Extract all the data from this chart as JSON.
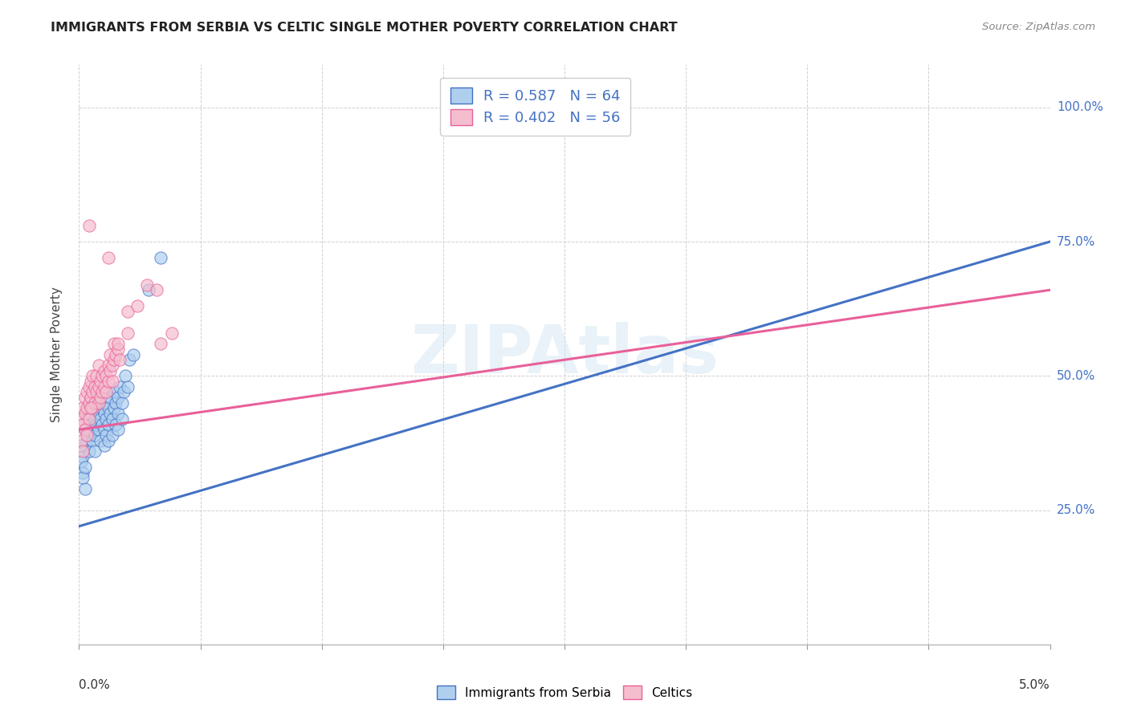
{
  "title": "IMMIGRANTS FROM SERBIA VS CELTIC SINGLE MOTHER POVERTY CORRELATION CHART",
  "source": "Source: ZipAtlas.com",
  "ylabel": "Single Mother Poverty",
  "ytick_labels": [
    "25.0%",
    "50.0%",
    "75.0%",
    "100.0%"
  ],
  "legend_entries": [
    {
      "label": "Immigrants from Serbia",
      "R": "0.587",
      "N": "64",
      "color": "#aecfee"
    },
    {
      "label": "Celtics",
      "R": "0.402",
      "N": "56",
      "color": "#f5bece"
    }
  ],
  "watermark": "ZIPAtlas",
  "background_color": "#ffffff",
  "serbia_color": "#aecfee",
  "celtics_color": "#f5bece",
  "serbia_line_color": "#4472c4",
  "celtics_line_color": "#e8609a",
  "serbia_scatter": [
    [
      0.0002,
      0.35
    ],
    [
      0.0003,
      0.37
    ],
    [
      0.0003,
      0.4
    ],
    [
      0.0004,
      0.38
    ],
    [
      0.0004,
      0.42
    ],
    [
      0.0005,
      0.36
    ],
    [
      0.0005,
      0.39
    ],
    [
      0.0005,
      0.44
    ],
    [
      0.0006,
      0.41
    ],
    [
      0.0006,
      0.43
    ],
    [
      0.0006,
      0.46
    ],
    [
      0.0007,
      0.4
    ],
    [
      0.0007,
      0.44
    ],
    [
      0.0007,
      0.38
    ],
    [
      0.0008,
      0.42
    ],
    [
      0.0008,
      0.39
    ],
    [
      0.0008,
      0.36
    ],
    [
      0.0009,
      0.41
    ],
    [
      0.0009,
      0.44
    ],
    [
      0.001,
      0.43
    ],
    [
      0.001,
      0.46
    ],
    [
      0.001,
      0.4
    ],
    [
      0.0011,
      0.42
    ],
    [
      0.0011,
      0.45
    ],
    [
      0.0011,
      0.38
    ],
    [
      0.0012,
      0.44
    ],
    [
      0.0012,
      0.41
    ],
    [
      0.0012,
      0.47
    ],
    [
      0.0013,
      0.43
    ],
    [
      0.0013,
      0.4
    ],
    [
      0.0013,
      0.37
    ],
    [
      0.0014,
      0.42
    ],
    [
      0.0014,
      0.45
    ],
    [
      0.0014,
      0.39
    ],
    [
      0.0015,
      0.44
    ],
    [
      0.0015,
      0.41
    ],
    [
      0.0015,
      0.38
    ],
    [
      0.0016,
      0.43
    ],
    [
      0.0016,
      0.46
    ],
    [
      0.0017,
      0.42
    ],
    [
      0.0017,
      0.39
    ],
    [
      0.0018,
      0.44
    ],
    [
      0.0018,
      0.47
    ],
    [
      0.0019,
      0.45
    ],
    [
      0.0019,
      0.41
    ],
    [
      0.002,
      0.46
    ],
    [
      0.002,
      0.43
    ],
    [
      0.002,
      0.4
    ],
    [
      0.0021,
      0.48
    ],
    [
      0.0022,
      0.45
    ],
    [
      0.0022,
      0.42
    ],
    [
      0.0023,
      0.47
    ],
    [
      0.0024,
      0.5
    ],
    [
      0.0025,
      0.48
    ],
    [
      0.0001,
      0.37
    ],
    [
      0.0001,
      0.34
    ],
    [
      0.0002,
      0.32
    ],
    [
      0.0003,
      0.29
    ],
    [
      0.0002,
      0.31
    ],
    [
      0.0003,
      0.33
    ],
    [
      0.0026,
      0.53
    ],
    [
      0.0028,
      0.54
    ],
    [
      0.0036,
      0.66
    ],
    [
      0.0042,
      0.72
    ]
  ],
  "celtics_scatter": [
    [
      0.0001,
      0.42
    ],
    [
      0.0002,
      0.44
    ],
    [
      0.0002,
      0.41
    ],
    [
      0.0003,
      0.43
    ],
    [
      0.0003,
      0.46
    ],
    [
      0.0004,
      0.44
    ],
    [
      0.0004,
      0.47
    ],
    [
      0.0005,
      0.45
    ],
    [
      0.0005,
      0.48
    ],
    [
      0.0006,
      0.46
    ],
    [
      0.0006,
      0.49
    ],
    [
      0.0007,
      0.47
    ],
    [
      0.0007,
      0.44
    ],
    [
      0.0007,
      0.5
    ],
    [
      0.0008,
      0.48
    ],
    [
      0.0008,
      0.45
    ],
    [
      0.0009,
      0.47
    ],
    [
      0.0009,
      0.5
    ],
    [
      0.001,
      0.48
    ],
    [
      0.001,
      0.45
    ],
    [
      0.001,
      0.52
    ],
    [
      0.0011,
      0.49
    ],
    [
      0.0011,
      0.46
    ],
    [
      0.0012,
      0.5
    ],
    [
      0.0012,
      0.47
    ],
    [
      0.0013,
      0.51
    ],
    [
      0.0013,
      0.48
    ],
    [
      0.0014,
      0.5
    ],
    [
      0.0014,
      0.47
    ],
    [
      0.0015,
      0.52
    ],
    [
      0.0015,
      0.49
    ],
    [
      0.0016,
      0.51
    ],
    [
      0.0016,
      0.54
    ],
    [
      0.0017,
      0.52
    ],
    [
      0.0017,
      0.49
    ],
    [
      0.0018,
      0.53
    ],
    [
      0.0018,
      0.56
    ],
    [
      0.0019,
      0.54
    ],
    [
      0.002,
      0.55
    ],
    [
      0.0021,
      0.53
    ],
    [
      0.0001,
      0.38
    ],
    [
      0.0002,
      0.36
    ],
    [
      0.0003,
      0.4
    ],
    [
      0.0004,
      0.39
    ],
    [
      0.0005,
      0.42
    ],
    [
      0.0006,
      0.44
    ],
    [
      0.0025,
      0.62
    ],
    [
      0.0025,
      0.58
    ],
    [
      0.003,
      0.63
    ],
    [
      0.0035,
      0.67
    ],
    [
      0.004,
      0.66
    ],
    [
      0.0042,
      0.56
    ],
    [
      0.0015,
      0.72
    ],
    [
      0.002,
      0.56
    ],
    [
      0.0005,
      0.78
    ],
    [
      0.0048,
      0.58
    ]
  ],
  "serbia_line": {
    "x0": 0.0,
    "y0": 0.22,
    "x1": 0.05,
    "y1": 0.75
  },
  "celtics_line": {
    "x0": 0.0,
    "y0": 0.4,
    "x1": 0.05,
    "y1": 0.66
  },
  "xmin": 0.0,
  "xmax": 0.05,
  "ymin": 0.0,
  "ymax": 1.08
}
